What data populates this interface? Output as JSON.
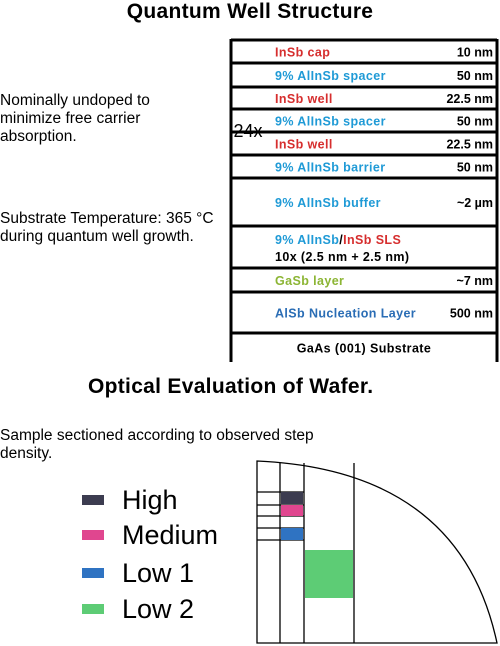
{
  "colors": {
    "red_material": "#d62e2e",
    "blue_material": "#1f9ad6",
    "green_material": "#8cb534",
    "navy_material": "#2a6db5",
    "legend_high": "#3c3c50",
    "legend_medium": "#e0468f",
    "legend_low1": "#2f73c2",
    "legend_low2": "#5dcc75"
  },
  "structure": {
    "title": "Quantum Well Structure",
    "note1": "Nominally undoped to minimize free carrier absorption.",
    "note2": "Substrate Temperature: 365 °C during quantum well growth.",
    "repeat_label": "24x",
    "layers": [
      {
        "parts": [
          {
            "text": "InSb cap",
            "color": "#d62e2e"
          }
        ],
        "thickness": "10 nm"
      },
      {
        "parts": [
          {
            "text": "9% AlInSb spacer",
            "color": "#1f9ad6"
          }
        ],
        "thickness": "50 nm"
      },
      {
        "parts": [
          {
            "text": "InSb well",
            "color": "#d62e2e"
          }
        ],
        "thickness": "22.5 nm"
      },
      {
        "parts": [
          {
            "text": "9% AlInSb spacer",
            "color": "#1f9ad6"
          }
        ],
        "thickness": "50 nm"
      },
      {
        "parts": [
          {
            "text": "InSb well",
            "color": "#d62e2e"
          }
        ],
        "thickness": "22.5 nm"
      },
      {
        "parts": [
          {
            "text": "9% AlInSb barrier",
            "color": "#1f9ad6"
          }
        ],
        "thickness": "50 nm"
      },
      {
        "parts": [
          {
            "text": "9% AlInSb buffer",
            "color": "#1f9ad6"
          }
        ],
        "thickness": "~2 µm"
      },
      {
        "parts": [
          {
            "text": "9% AlInSb",
            "color": "#1f9ad6"
          },
          {
            "text": "/",
            "color": "#000000"
          },
          {
            "text": "InSb SLS",
            "color": "#d62e2e"
          }
        ],
        "line2": "10x (2.5 nm + 2.5 nm)",
        "thickness": ""
      },
      {
        "parts": [
          {
            "text": "GaSb layer",
            "color": "#8cb534"
          }
        ],
        "thickness": "~7 nm"
      },
      {
        "parts": [
          {
            "text": "AlSb Nucleation Layer",
            "color": "#2a6db5"
          }
        ],
        "thickness": "500 nm"
      },
      {
        "parts": [
          {
            "text": "GaAs (001) Substrate",
            "color": "#000000"
          }
        ],
        "thickness": ""
      }
    ]
  },
  "wafer": {
    "title": "Optical Evaluation of Wafer.",
    "note": "Sample sectioned according to observed step density.",
    "legend": [
      {
        "label": "High",
        "color": "#3c3c50"
      },
      {
        "label": "Medium",
        "color": "#e0468f"
      },
      {
        "label": "Low 1",
        "color": "#2f73c2"
      },
      {
        "label": "Low 2",
        "color": "#5dcc75"
      }
    ]
  }
}
